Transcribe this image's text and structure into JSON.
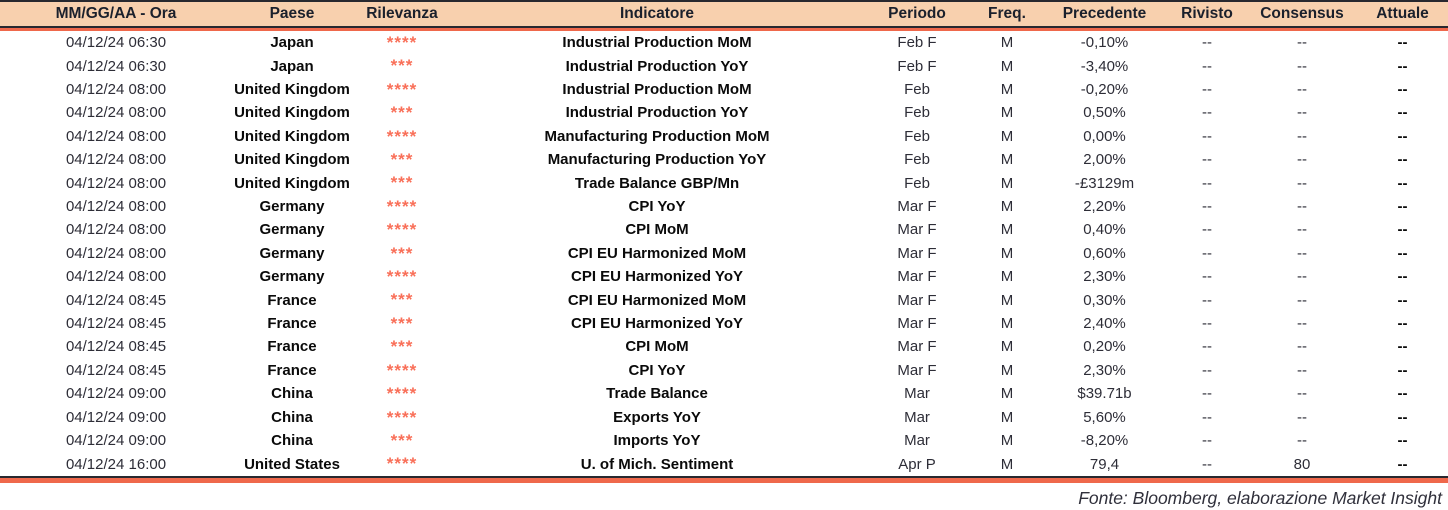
{
  "colors": {
    "header_bg": "#F8D0AE",
    "accent_line": "#EF684B",
    "dark_line": "#28282F",
    "star_color": "#F96F58"
  },
  "table": {
    "columns": [
      {
        "key": "datetime",
        "label": "MM/GG/AA - Ora"
      },
      {
        "key": "country",
        "label": "Paese"
      },
      {
        "key": "relevance",
        "label": "Rilevanza"
      },
      {
        "key": "indicator",
        "label": "Indicatore"
      },
      {
        "key": "period",
        "label": "Periodo"
      },
      {
        "key": "freq",
        "label": "Freq."
      },
      {
        "key": "previous",
        "label": "Precedente"
      },
      {
        "key": "revised",
        "label": "Rivisto"
      },
      {
        "key": "consensus",
        "label": "Consensus"
      },
      {
        "key": "actual",
        "label": "Attuale"
      }
    ],
    "rows": [
      {
        "datetime": "04/12/24 06:30",
        "country": "Japan",
        "relevance": "****",
        "indicator": "Industrial Production MoM",
        "period": "Feb F",
        "freq": "M",
        "previous": "-0,10%",
        "revised": "--",
        "consensus": "--",
        "actual": "--"
      },
      {
        "datetime": "04/12/24 06:30",
        "country": "Japan",
        "relevance": "***",
        "indicator": "Industrial Production YoY",
        "period": "Feb F",
        "freq": "M",
        "previous": "-3,40%",
        "revised": "--",
        "consensus": "--",
        "actual": "--"
      },
      {
        "datetime": "04/12/24 08:00",
        "country": "United Kingdom",
        "relevance": "****",
        "indicator": "Industrial Production MoM",
        "period": "Feb",
        "freq": "M",
        "previous": "-0,20%",
        "revised": "--",
        "consensus": "--",
        "actual": "--"
      },
      {
        "datetime": "04/12/24 08:00",
        "country": "United Kingdom",
        "relevance": "***",
        "indicator": "Industrial Production YoY",
        "period": "Feb",
        "freq": "M",
        "previous": "0,50%",
        "revised": "--",
        "consensus": "--",
        "actual": "--"
      },
      {
        "datetime": "04/12/24 08:00",
        "country": "United Kingdom",
        "relevance": "****",
        "indicator": "Manufacturing Production MoM",
        "period": "Feb",
        "freq": "M",
        "previous": "0,00%",
        "revised": "--",
        "consensus": "--",
        "actual": "--"
      },
      {
        "datetime": "04/12/24 08:00",
        "country": "United Kingdom",
        "relevance": "***",
        "indicator": "Manufacturing Production YoY",
        "period": "Feb",
        "freq": "M",
        "previous": "2,00%",
        "revised": "--",
        "consensus": "--",
        "actual": "--"
      },
      {
        "datetime": "04/12/24 08:00",
        "country": "United Kingdom",
        "relevance": "***",
        "indicator": "Trade Balance GBP/Mn",
        "period": "Feb",
        "freq": "M",
        "previous": "-£3129m",
        "revised": "--",
        "consensus": "--",
        "actual": "--"
      },
      {
        "datetime": "04/12/24 08:00",
        "country": "Germany",
        "relevance": "****",
        "indicator": "CPI YoY",
        "period": "Mar F",
        "freq": "M",
        "previous": "2,20%",
        "revised": "--",
        "consensus": "--",
        "actual": "--"
      },
      {
        "datetime": "04/12/24 08:00",
        "country": "Germany",
        "relevance": "****",
        "indicator": "CPI MoM",
        "period": "Mar F",
        "freq": "M",
        "previous": "0,40%",
        "revised": "--",
        "consensus": "--",
        "actual": "--"
      },
      {
        "datetime": "04/12/24 08:00",
        "country": "Germany",
        "relevance": "***",
        "indicator": "CPI EU Harmonized MoM",
        "period": "Mar F",
        "freq": "M",
        "previous": "0,60%",
        "revised": "--",
        "consensus": "--",
        "actual": "--"
      },
      {
        "datetime": "04/12/24 08:00",
        "country": "Germany",
        "relevance": "****",
        "indicator": "CPI EU Harmonized YoY",
        "period": "Mar F",
        "freq": "M",
        "previous": "2,30%",
        "revised": "--",
        "consensus": "--",
        "actual": "--"
      },
      {
        "datetime": "04/12/24 08:45",
        "country": "France",
        "relevance": "***",
        "indicator": "CPI EU Harmonized MoM",
        "period": "Mar F",
        "freq": "M",
        "previous": "0,30%",
        "revised": "--",
        "consensus": "--",
        "actual": "--"
      },
      {
        "datetime": "04/12/24 08:45",
        "country": "France",
        "relevance": "***",
        "indicator": "CPI EU Harmonized YoY",
        "period": "Mar F",
        "freq": "M",
        "previous": "2,40%",
        "revised": "--",
        "consensus": "--",
        "actual": "--"
      },
      {
        "datetime": "04/12/24 08:45",
        "country": "France",
        "relevance": "***",
        "indicator": "CPI MoM",
        "period": "Mar F",
        "freq": "M",
        "previous": "0,20%",
        "revised": "--",
        "consensus": "--",
        "actual": "--"
      },
      {
        "datetime": "04/12/24 08:45",
        "country": "France",
        "relevance": "****",
        "indicator": "CPI YoY",
        "period": "Mar F",
        "freq": "M",
        "previous": "2,30%",
        "revised": "--",
        "consensus": "--",
        "actual": "--"
      },
      {
        "datetime": "04/12/24 09:00",
        "country": "China",
        "relevance": "****",
        "indicator": "Trade Balance",
        "period": "Mar",
        "freq": "M",
        "previous": "$39.71b",
        "revised": "--",
        "consensus": "--",
        "actual": "--"
      },
      {
        "datetime": "04/12/24 09:00",
        "country": "China",
        "relevance": "****",
        "indicator": "Exports YoY",
        "period": "Mar",
        "freq": "M",
        "previous": "5,60%",
        "revised": "--",
        "consensus": "--",
        "actual": "--"
      },
      {
        "datetime": "04/12/24 09:00",
        "country": "China",
        "relevance": "***",
        "indicator": "Imports YoY",
        "period": "Mar",
        "freq": "M",
        "previous": "-8,20%",
        "revised": "--",
        "consensus": "--",
        "actual": "--"
      },
      {
        "datetime": "04/12/24 16:00",
        "country": "United States",
        "relevance": "****",
        "indicator": "U. of Mich. Sentiment",
        "period": "Apr P",
        "freq": "M",
        "previous": "79,4",
        "revised": "--",
        "consensus": "80",
        "actual": "--"
      }
    ]
  },
  "footer": {
    "source_note": "Fonte: Bloomberg, elaborazione Market Insight"
  }
}
